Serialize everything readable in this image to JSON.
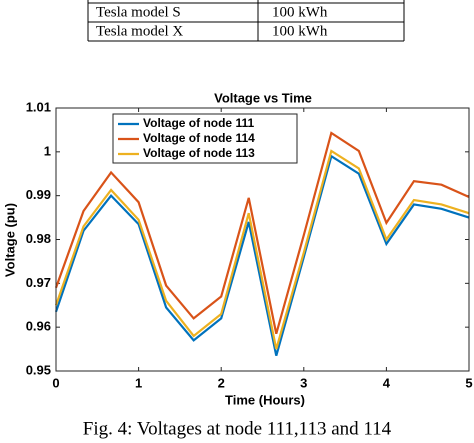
{
  "table": {
    "rows": [
      [
        "Tesla model S",
        "100 kWh"
      ],
      [
        "Tesla model X",
        "100 kWh"
      ]
    ]
  },
  "chart_data": {
    "type": "line",
    "title": "Voltage vs Time",
    "xlabel": "Time (Hours)",
    "ylabel": "Voltage (pu)",
    "x": [
      0,
      0.3333,
      0.6667,
      1,
      1.3333,
      1.6667,
      2,
      2.3333,
      2.6667,
      3,
      3.3333,
      3.6667,
      4,
      4.3333,
      4.6667,
      5
    ],
    "series": [
      {
        "name": "Voltage of node 111",
        "color": "#0072bd",
        "values": [
          0.9635,
          0.982,
          0.99,
          0.9835,
          0.9645,
          0.957,
          0.962,
          0.984,
          0.9535,
          0.976,
          0.999,
          0.995,
          0.979,
          0.988,
          0.987,
          0.985
        ]
      },
      {
        "name": "Voltage of node 114",
        "color": "#d95319",
        "values": [
          0.969,
          0.9865,
          0.9953,
          0.9885,
          0.9695,
          0.962,
          0.967,
          0.9895,
          0.9585,
          0.981,
          1.0043,
          1.0002,
          0.9838,
          0.9933,
          0.9925,
          0.9897
        ]
      },
      {
        "name": "Voltage of node 113",
        "color": "#edb120",
        "values": [
          0.965,
          0.983,
          0.9913,
          0.9845,
          0.966,
          0.958,
          0.963,
          0.986,
          0.955,
          0.977,
          1.0002,
          0.9962,
          0.98,
          0.989,
          0.988,
          0.986
        ]
      }
    ],
    "xlim": [
      0,
      5
    ],
    "xticks": [
      0,
      1,
      2,
      3,
      4,
      5
    ],
    "ylim": [
      0.95,
      1.01
    ],
    "yticks": [
      0.95,
      0.96,
      0.97,
      0.98,
      0.99,
      1,
      1.01
    ]
  },
  "caption": "Fig. 4: Voltages at node 111,113 and 114"
}
